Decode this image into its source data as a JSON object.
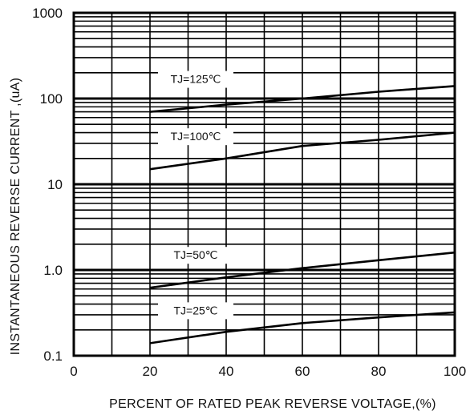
{
  "chart_data": {
    "type": "line",
    "title": "",
    "xlabel": "PERCENT OF RATED PEAK REVERSE VOLTAGE,(%)",
    "ylabel": "INSTANTANEOUS  REVERSE  CURRENT ,(uA)",
    "x_ticks": [
      "0",
      "20",
      "40",
      "60",
      "80",
      "100"
    ],
    "y_ticks": [
      "0.1",
      "1.0",
      "10",
      "100",
      "1000"
    ],
    "xlim": [
      0,
      100
    ],
    "ylim": [
      0.1,
      1000
    ],
    "y_scale": "log",
    "grid": true,
    "series": [
      {
        "name": "TJ=125℃",
        "x": [
          20,
          40,
          60,
          80,
          100
        ],
        "y": [
          70,
          85,
          100,
          120,
          140
        ]
      },
      {
        "name": "TJ=100℃",
        "x": [
          20,
          40,
          60,
          80,
          100
        ],
        "y": [
          15,
          20,
          28,
          33,
          40
        ]
      },
      {
        "name": "TJ=50℃",
        "x": [
          20,
          40,
          60,
          80,
          100
        ],
        "y": [
          0.62,
          0.82,
          1.05,
          1.3,
          1.6
        ]
      },
      {
        "name": "TJ=25℃",
        "x": [
          20,
          40,
          60,
          80,
          100
        ],
        "y": [
          0.14,
          0.19,
          0.24,
          0.28,
          0.32
        ]
      }
    ]
  }
}
